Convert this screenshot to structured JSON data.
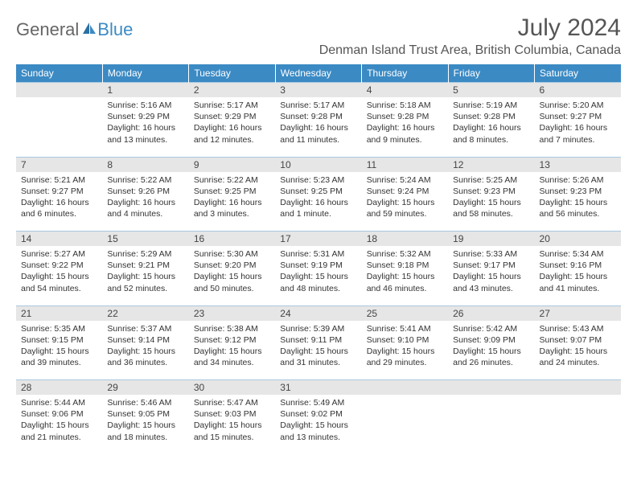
{
  "logo": {
    "part1": "General",
    "part2": "Blue"
  },
  "title": "July 2024",
  "location": "Denman Island Trust Area, British Columbia, Canada",
  "colors": {
    "header_bg": "#3b8ac4",
    "header_text": "#ffffff",
    "daynum_bg": "#e6e6e6",
    "border": "#a8c8e0",
    "text": "#333333",
    "logo_gray": "#666666",
    "logo_blue": "#3b8ac4"
  },
  "weekdays": [
    "Sunday",
    "Monday",
    "Tuesday",
    "Wednesday",
    "Thursday",
    "Friday",
    "Saturday"
  ],
  "weeks": [
    [
      null,
      {
        "n": "1",
        "sr": "5:16 AM",
        "ss": "9:29 PM",
        "dl": "16 hours and 13 minutes."
      },
      {
        "n": "2",
        "sr": "5:17 AM",
        "ss": "9:29 PM",
        "dl": "16 hours and 12 minutes."
      },
      {
        "n": "3",
        "sr": "5:17 AM",
        "ss": "9:28 PM",
        "dl": "16 hours and 11 minutes."
      },
      {
        "n": "4",
        "sr": "5:18 AM",
        "ss": "9:28 PM",
        "dl": "16 hours and 9 minutes."
      },
      {
        "n": "5",
        "sr": "5:19 AM",
        "ss": "9:28 PM",
        "dl": "16 hours and 8 minutes."
      },
      {
        "n": "6",
        "sr": "5:20 AM",
        "ss": "9:27 PM",
        "dl": "16 hours and 7 minutes."
      }
    ],
    [
      {
        "n": "7",
        "sr": "5:21 AM",
        "ss": "9:27 PM",
        "dl": "16 hours and 6 minutes."
      },
      {
        "n": "8",
        "sr": "5:22 AM",
        "ss": "9:26 PM",
        "dl": "16 hours and 4 minutes."
      },
      {
        "n": "9",
        "sr": "5:22 AM",
        "ss": "9:25 PM",
        "dl": "16 hours and 3 minutes."
      },
      {
        "n": "10",
        "sr": "5:23 AM",
        "ss": "9:25 PM",
        "dl": "16 hours and 1 minute."
      },
      {
        "n": "11",
        "sr": "5:24 AM",
        "ss": "9:24 PM",
        "dl": "15 hours and 59 minutes."
      },
      {
        "n": "12",
        "sr": "5:25 AM",
        "ss": "9:23 PM",
        "dl": "15 hours and 58 minutes."
      },
      {
        "n": "13",
        "sr": "5:26 AM",
        "ss": "9:23 PM",
        "dl": "15 hours and 56 minutes."
      }
    ],
    [
      {
        "n": "14",
        "sr": "5:27 AM",
        "ss": "9:22 PM",
        "dl": "15 hours and 54 minutes."
      },
      {
        "n": "15",
        "sr": "5:29 AM",
        "ss": "9:21 PM",
        "dl": "15 hours and 52 minutes."
      },
      {
        "n": "16",
        "sr": "5:30 AM",
        "ss": "9:20 PM",
        "dl": "15 hours and 50 minutes."
      },
      {
        "n": "17",
        "sr": "5:31 AM",
        "ss": "9:19 PM",
        "dl": "15 hours and 48 minutes."
      },
      {
        "n": "18",
        "sr": "5:32 AM",
        "ss": "9:18 PM",
        "dl": "15 hours and 46 minutes."
      },
      {
        "n": "19",
        "sr": "5:33 AM",
        "ss": "9:17 PM",
        "dl": "15 hours and 43 minutes."
      },
      {
        "n": "20",
        "sr": "5:34 AM",
        "ss": "9:16 PM",
        "dl": "15 hours and 41 minutes."
      }
    ],
    [
      {
        "n": "21",
        "sr": "5:35 AM",
        "ss": "9:15 PM",
        "dl": "15 hours and 39 minutes."
      },
      {
        "n": "22",
        "sr": "5:37 AM",
        "ss": "9:14 PM",
        "dl": "15 hours and 36 minutes."
      },
      {
        "n": "23",
        "sr": "5:38 AM",
        "ss": "9:12 PM",
        "dl": "15 hours and 34 minutes."
      },
      {
        "n": "24",
        "sr": "5:39 AM",
        "ss": "9:11 PM",
        "dl": "15 hours and 31 minutes."
      },
      {
        "n": "25",
        "sr": "5:41 AM",
        "ss": "9:10 PM",
        "dl": "15 hours and 29 minutes."
      },
      {
        "n": "26",
        "sr": "5:42 AM",
        "ss": "9:09 PM",
        "dl": "15 hours and 26 minutes."
      },
      {
        "n": "27",
        "sr": "5:43 AM",
        "ss": "9:07 PM",
        "dl": "15 hours and 24 minutes."
      }
    ],
    [
      {
        "n": "28",
        "sr": "5:44 AM",
        "ss": "9:06 PM",
        "dl": "15 hours and 21 minutes."
      },
      {
        "n": "29",
        "sr": "5:46 AM",
        "ss": "9:05 PM",
        "dl": "15 hours and 18 minutes."
      },
      {
        "n": "30",
        "sr": "5:47 AM",
        "ss": "9:03 PM",
        "dl": "15 hours and 15 minutes."
      },
      {
        "n": "31",
        "sr": "5:49 AM",
        "ss": "9:02 PM",
        "dl": "15 hours and 13 minutes."
      },
      null,
      null,
      null
    ]
  ],
  "labels": {
    "sunrise": "Sunrise:",
    "sunset": "Sunset:",
    "daylight": "Daylight:"
  }
}
